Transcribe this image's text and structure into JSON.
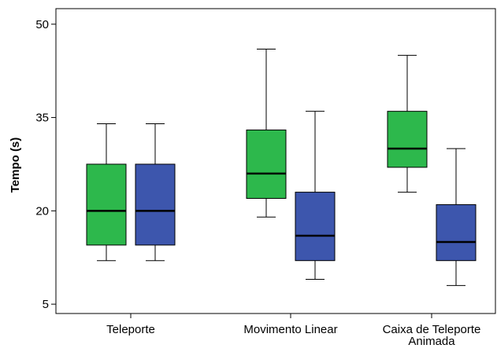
{
  "chart_data": {
    "type": "box",
    "title": "",
    "xlabel": "",
    "ylabel": "Tempo (s)",
    "ylim": [
      3.5,
      52.5
    ],
    "yticks": [
      5,
      20,
      35,
      50
    ],
    "grid": false,
    "categories": [
      [
        "Teleporte"
      ],
      [
        "Movimento Linear"
      ],
      [
        "Caixa de Teleporte",
        "Animada"
      ]
    ],
    "series": [
      {
        "color": "#2db84c",
        "boxes": [
          {
            "min": 12,
            "q1": 14.5,
            "median": 20,
            "q3": 27.5,
            "max": 34
          },
          {
            "min": 19,
            "q1": 22,
            "median": 26,
            "q3": 33,
            "max": 46
          },
          {
            "min": 23,
            "q1": 27,
            "median": 30,
            "q3": 36,
            "max": 45
          }
        ]
      },
      {
        "color": "#3d56ad",
        "boxes": [
          {
            "min": 12,
            "q1": 14.5,
            "median": 20,
            "q3": 27.5,
            "max": 34
          },
          {
            "min": 9,
            "q1": 12,
            "median": 16,
            "q3": 23,
            "max": 36
          },
          {
            "min": 8,
            "q1": 12,
            "median": 15,
            "q3": 21,
            "max": 30
          }
        ]
      }
    ]
  }
}
